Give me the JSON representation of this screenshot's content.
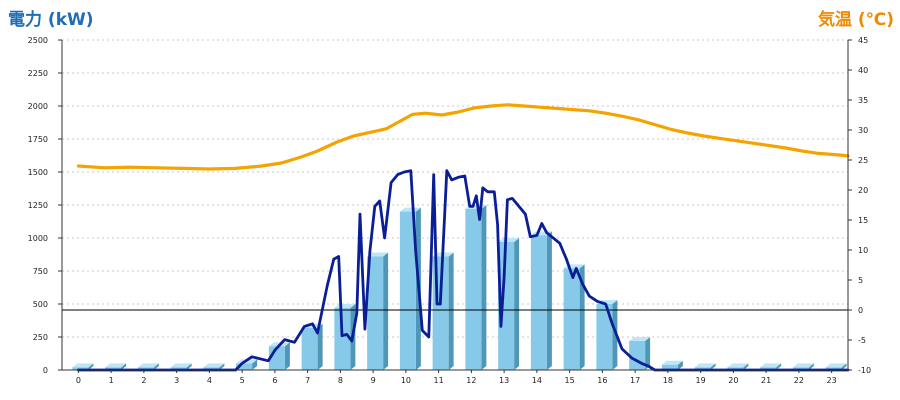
{
  "colors": {
    "left_axis_title": "#1f6db5",
    "right_axis_title": "#f08a00",
    "bar_front": "#87c9e8",
    "bar_side": "#4f97b6",
    "bar_top": "#bfe6f6",
    "power_line": "#0a1f96",
    "temperature_line": "#f5a300",
    "grid": "#b8b8b8"
  },
  "chart_data": {
    "type": "bar",
    "title": "",
    "xlabel": "",
    "ylabel": "電力 (kW)",
    "y2label": "気温 (℃)",
    "ylim": [
      0,
      2500
    ],
    "y2lim": [
      -10,
      45
    ],
    "x_ticks": [
      "0",
      "1",
      "2",
      "3",
      "4",
      "5",
      "6",
      "7",
      "8",
      "9",
      "10",
      "11",
      "12",
      "13",
      "14",
      "15",
      "16",
      "17",
      "18",
      "19",
      "20",
      "21",
      "22",
      "23"
    ],
    "y_ticks": [
      "0",
      "250",
      "500",
      "750",
      "1000",
      "1250",
      "1500",
      "1750",
      "2000",
      "2250",
      "2500"
    ],
    "y2_ticks": [
      "-10",
      "-5",
      "0",
      "5",
      "10",
      "15",
      "20",
      "25",
      "30",
      "35",
      "40",
      "45"
    ],
    "grid": true,
    "series": [
      {
        "kind": "bar",
        "axis": "left",
        "categories": [
          0,
          1,
          2,
          3,
          4,
          5,
          6,
          7,
          8,
          9,
          10,
          11,
          12,
          13,
          14,
          15,
          16,
          17,
          18,
          19,
          20,
          21,
          22,
          23
        ],
        "values": [
          20,
          20,
          20,
          20,
          20,
          50,
          180,
          320,
          470,
          860,
          1200,
          860,
          1220,
          970,
          1020,
          770,
          500,
          220,
          40,
          20,
          20,
          20,
          20,
          20
        ]
      },
      {
        "kind": "line",
        "axis": "left",
        "points": [
          [
            0,
            0
          ],
          [
            1,
            0
          ],
          [
            2,
            0
          ],
          [
            3,
            0
          ],
          [
            4,
            0
          ],
          [
            4.8,
            0
          ],
          [
            5,
            50
          ],
          [
            5.3,
            100
          ],
          [
            5.8,
            70
          ],
          [
            6,
            150
          ],
          [
            6.3,
            230
          ],
          [
            6.6,
            210
          ],
          [
            6.9,
            330
          ],
          [
            7.15,
            350
          ],
          [
            7.3,
            280
          ],
          [
            7.6,
            640
          ],
          [
            7.8,
            840
          ],
          [
            7.95,
            860
          ],
          [
            8.05,
            260
          ],
          [
            8.2,
            270
          ],
          [
            8.35,
            220
          ],
          [
            8.5,
            430
          ],
          [
            8.6,
            1180
          ],
          [
            8.75,
            310
          ],
          [
            8.9,
            900
          ],
          [
            9.05,
            1240
          ],
          [
            9.2,
            1280
          ],
          [
            9.35,
            1000
          ],
          [
            9.55,
            1420
          ],
          [
            9.75,
            1480
          ],
          [
            9.95,
            1500
          ],
          [
            10.15,
            1510
          ],
          [
            10.3,
            900
          ],
          [
            10.5,
            300
          ],
          [
            10.7,
            250
          ],
          [
            10.85,
            1480
          ],
          [
            10.95,
            500
          ],
          [
            11.05,
            500
          ],
          [
            11.25,
            1510
          ],
          [
            11.4,
            1440
          ],
          [
            11.6,
            1460
          ],
          [
            11.8,
            1470
          ],
          [
            11.95,
            1240
          ],
          [
            12.05,
            1240
          ],
          [
            12.15,
            1320
          ],
          [
            12.25,
            1140
          ],
          [
            12.35,
            1380
          ],
          [
            12.5,
            1350
          ],
          [
            12.7,
            1350
          ],
          [
            12.8,
            1100
          ],
          [
            12.9,
            330
          ],
          [
            13.0,
            700
          ],
          [
            13.1,
            1290
          ],
          [
            13.25,
            1300
          ],
          [
            13.45,
            1240
          ],
          [
            13.65,
            1180
          ],
          [
            13.8,
            1010
          ],
          [
            14.0,
            1020
          ],
          [
            14.15,
            1110
          ],
          [
            14.3,
            1040
          ],
          [
            14.5,
            1000
          ],
          [
            14.7,
            960
          ],
          [
            14.9,
            840
          ],
          [
            15.1,
            700
          ],
          [
            15.2,
            770
          ],
          [
            15.4,
            650
          ],
          [
            15.6,
            560
          ],
          [
            15.85,
            520
          ],
          [
            16.1,
            500
          ],
          [
            16.3,
            350
          ],
          [
            16.6,
            160
          ],
          [
            16.9,
            90
          ],
          [
            17.2,
            50
          ],
          [
            17.4,
            30
          ],
          [
            17.6,
            0
          ],
          [
            18,
            0
          ],
          [
            19,
            0
          ],
          [
            20,
            0
          ],
          [
            21,
            0
          ],
          [
            22,
            0
          ],
          [
            23,
            0
          ],
          [
            23.5,
            0
          ]
        ]
      },
      {
        "kind": "line",
        "axis": "right",
        "points": [
          [
            0,
            24.0
          ],
          [
            0.8,
            23.7
          ],
          [
            1.6,
            23.8
          ],
          [
            2.4,
            23.7
          ],
          [
            3.2,
            23.6
          ],
          [
            4.0,
            23.5
          ],
          [
            4.8,
            23.6
          ],
          [
            5.6,
            24.0
          ],
          [
            6.2,
            24.5
          ],
          [
            6.8,
            25.5
          ],
          [
            7.3,
            26.5
          ],
          [
            7.9,
            28.0
          ],
          [
            8.4,
            29.0
          ],
          [
            8.9,
            29.6
          ],
          [
            9.4,
            30.2
          ],
          [
            9.8,
            31.4
          ],
          [
            10.2,
            32.6
          ],
          [
            10.6,
            32.8
          ],
          [
            11.1,
            32.5
          ],
          [
            11.6,
            33.0
          ],
          [
            12.1,
            33.7
          ],
          [
            12.6,
            34.0
          ],
          [
            13.1,
            34.2
          ],
          [
            13.6,
            34.0
          ],
          [
            14.1,
            33.8
          ],
          [
            14.6,
            33.6
          ],
          [
            15.1,
            33.4
          ],
          [
            15.6,
            33.2
          ],
          [
            16.1,
            32.8
          ],
          [
            16.6,
            32.3
          ],
          [
            17.1,
            31.7
          ],
          [
            17.6,
            30.9
          ],
          [
            18.1,
            30.1
          ],
          [
            18.6,
            29.5
          ],
          [
            19.1,
            29.0
          ],
          [
            19.6,
            28.6
          ],
          [
            20.1,
            28.2
          ],
          [
            20.6,
            27.8
          ],
          [
            21.1,
            27.4
          ],
          [
            21.6,
            27.0
          ],
          [
            22.1,
            26.5
          ],
          [
            22.6,
            26.1
          ],
          [
            23.1,
            25.9
          ],
          [
            23.5,
            25.7
          ]
        ]
      }
    ]
  }
}
